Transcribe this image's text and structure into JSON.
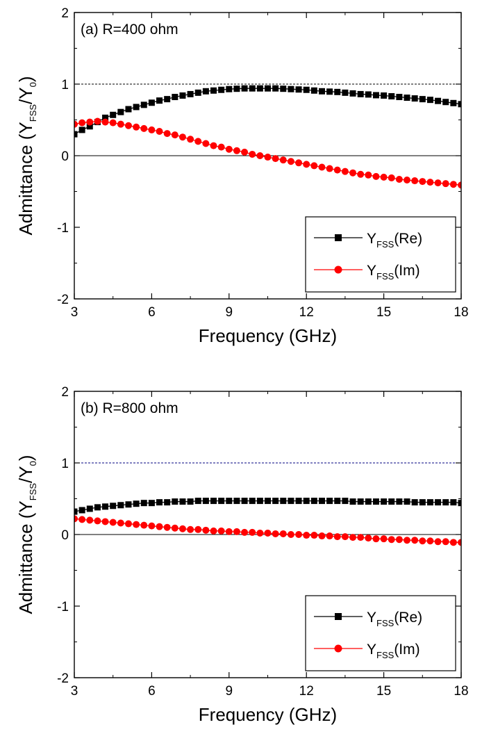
{
  "chart_data": [
    {
      "type": "line",
      "panel_label": "(a) R=400 ohm",
      "xlabel": "Frequency (GHz)",
      "ylabel": {
        "main": "Admittance (Y",
        "sub1": "FSS",
        "mid": "/Y",
        "sub2": "0",
        "end": ")"
      },
      "xlim": [
        3,
        18
      ],
      "ylim": [
        -2,
        2
      ],
      "xticks": [
        3,
        6,
        9,
        12,
        15,
        18
      ],
      "yticks": [
        -2,
        -1,
        0,
        1,
        2
      ],
      "reference_lines": [
        {
          "y": 1,
          "style": "dotted"
        },
        {
          "y": 0,
          "style": "solid"
        }
      ],
      "legend_position": "bottom-right",
      "colors": {
        "re": "#000000",
        "im": "#ff0000",
        "ref": "#000000"
      },
      "series": [
        {
          "key": "re",
          "marker": "square",
          "legend": {
            "pre": "Y",
            "sub": "FSS",
            "post": "(Re)"
          },
          "x": [
            3.0,
            3.3,
            3.6,
            3.9,
            4.2,
            4.5,
            4.8,
            5.1,
            5.4,
            5.7,
            6.0,
            6.3,
            6.6,
            6.9,
            7.2,
            7.5,
            7.8,
            8.1,
            8.4,
            8.7,
            9.0,
            9.3,
            9.6,
            9.9,
            10.2,
            10.5,
            10.8,
            11.1,
            11.4,
            11.7,
            12.0,
            12.3,
            12.6,
            12.9,
            13.2,
            13.5,
            13.8,
            14.1,
            14.4,
            14.7,
            15.0,
            15.3,
            15.6,
            15.9,
            16.2,
            16.5,
            16.8,
            17.1,
            17.4,
            17.7,
            18.0
          ],
          "y": [
            0.3,
            0.36,
            0.41,
            0.47,
            0.53,
            0.57,
            0.61,
            0.65,
            0.68,
            0.71,
            0.74,
            0.77,
            0.79,
            0.82,
            0.84,
            0.86,
            0.88,
            0.9,
            0.91,
            0.92,
            0.93,
            0.935,
            0.94,
            0.94,
            0.94,
            0.94,
            0.94,
            0.935,
            0.93,
            0.925,
            0.92,
            0.91,
            0.9,
            0.895,
            0.89,
            0.88,
            0.87,
            0.86,
            0.855,
            0.845,
            0.84,
            0.83,
            0.82,
            0.81,
            0.8,
            0.79,
            0.78,
            0.765,
            0.75,
            0.735,
            0.72
          ]
        },
        {
          "key": "im",
          "marker": "circle",
          "legend": {
            "pre": "Y",
            "sub": "FSS",
            "post": "(Im)"
          },
          "x": [
            3.0,
            3.3,
            3.6,
            3.9,
            4.2,
            4.5,
            4.8,
            5.1,
            5.4,
            5.7,
            6.0,
            6.3,
            6.6,
            6.9,
            7.2,
            7.5,
            7.8,
            8.1,
            8.4,
            8.7,
            9.0,
            9.3,
            9.6,
            9.9,
            10.2,
            10.5,
            10.8,
            11.1,
            11.4,
            11.7,
            12.0,
            12.3,
            12.6,
            12.9,
            13.2,
            13.5,
            13.8,
            14.1,
            14.4,
            14.7,
            15.0,
            15.3,
            15.6,
            15.9,
            16.2,
            16.5,
            16.8,
            17.1,
            17.4,
            17.7,
            18.0
          ],
          "y": [
            0.44,
            0.46,
            0.47,
            0.48,
            0.47,
            0.46,
            0.44,
            0.42,
            0.4,
            0.38,
            0.36,
            0.34,
            0.31,
            0.29,
            0.26,
            0.23,
            0.2,
            0.17,
            0.14,
            0.12,
            0.09,
            0.07,
            0.05,
            0.02,
            0.0,
            -0.02,
            -0.04,
            -0.06,
            -0.08,
            -0.1,
            -0.12,
            -0.14,
            -0.16,
            -0.18,
            -0.2,
            -0.22,
            -0.24,
            -0.26,
            -0.27,
            -0.29,
            -0.3,
            -0.31,
            -0.33,
            -0.34,
            -0.35,
            -0.36,
            -0.37,
            -0.38,
            -0.39,
            -0.4,
            -0.41
          ]
        }
      ]
    },
    {
      "type": "line",
      "panel_label": "(b) R=800 ohm",
      "xlabel": "Frequency (GHz)",
      "ylabel": {
        "main": "Admittance (Y",
        "sub1": "FSS",
        "mid": "/Y",
        "sub2": "0",
        "end": ")"
      },
      "xlim": [
        3,
        18
      ],
      "ylim": [
        -2,
        2
      ],
      "xticks": [
        3,
        6,
        9,
        12,
        15,
        18
      ],
      "yticks": [
        -2,
        -1,
        0,
        1,
        2
      ],
      "reference_lines": [
        {
          "y": 1,
          "style": "dotted"
        },
        {
          "y": 0,
          "style": "solid"
        }
      ],
      "legend_position": "bottom-right",
      "colors": {
        "re": "#000000",
        "im": "#ff0000",
        "ref": "#000080"
      },
      "series": [
        {
          "key": "re",
          "marker": "square",
          "legend": {
            "pre": "Y",
            "sub": "FSS",
            "post": "(Re)"
          },
          "x": [
            3.0,
            3.3,
            3.6,
            3.9,
            4.2,
            4.5,
            4.8,
            5.1,
            5.4,
            5.7,
            6.0,
            6.3,
            6.6,
            6.9,
            7.2,
            7.5,
            7.8,
            8.1,
            8.4,
            8.7,
            9.0,
            9.3,
            9.6,
            9.9,
            10.2,
            10.5,
            10.8,
            11.1,
            11.4,
            11.7,
            12.0,
            12.3,
            12.6,
            12.9,
            13.2,
            13.5,
            13.8,
            14.1,
            14.4,
            14.7,
            15.0,
            15.3,
            15.6,
            15.9,
            16.2,
            16.5,
            16.8,
            17.1,
            17.4,
            17.7,
            18.0
          ],
          "y": [
            0.32,
            0.34,
            0.36,
            0.38,
            0.39,
            0.4,
            0.41,
            0.42,
            0.43,
            0.44,
            0.44,
            0.45,
            0.45,
            0.46,
            0.46,
            0.46,
            0.47,
            0.47,
            0.47,
            0.47,
            0.47,
            0.47,
            0.47,
            0.47,
            0.47,
            0.47,
            0.47,
            0.47,
            0.47,
            0.47,
            0.47,
            0.47,
            0.47,
            0.47,
            0.47,
            0.47,
            0.46,
            0.46,
            0.46,
            0.46,
            0.46,
            0.46,
            0.46,
            0.46,
            0.45,
            0.45,
            0.45,
            0.45,
            0.45,
            0.45,
            0.44
          ]
        },
        {
          "key": "im",
          "marker": "circle",
          "legend": {
            "pre": "Y",
            "sub": "FSS",
            "post": "(Im)"
          },
          "x": [
            3.0,
            3.3,
            3.6,
            3.9,
            4.2,
            4.5,
            4.8,
            5.1,
            5.4,
            5.7,
            6.0,
            6.3,
            6.6,
            6.9,
            7.2,
            7.5,
            7.8,
            8.1,
            8.4,
            8.7,
            9.0,
            9.3,
            9.6,
            9.9,
            10.2,
            10.5,
            10.8,
            11.1,
            11.4,
            11.7,
            12.0,
            12.3,
            12.6,
            12.9,
            13.2,
            13.5,
            13.8,
            14.1,
            14.4,
            14.7,
            15.0,
            15.3,
            15.6,
            15.9,
            16.2,
            16.5,
            16.8,
            17.1,
            17.4,
            17.7,
            18.0
          ],
          "y": [
            0.22,
            0.21,
            0.2,
            0.19,
            0.18,
            0.17,
            0.16,
            0.15,
            0.14,
            0.13,
            0.12,
            0.11,
            0.1,
            0.09,
            0.08,
            0.07,
            0.07,
            0.06,
            0.05,
            0.05,
            0.04,
            0.04,
            0.03,
            0.03,
            0.02,
            0.02,
            0.01,
            0.01,
            0.0,
            0.0,
            -0.01,
            -0.01,
            -0.02,
            -0.02,
            -0.03,
            -0.03,
            -0.04,
            -0.04,
            -0.05,
            -0.06,
            -0.06,
            -0.07,
            -0.07,
            -0.08,
            -0.08,
            -0.09,
            -0.09,
            -0.1,
            -0.1,
            -0.11,
            -0.11
          ]
        }
      ]
    }
  ]
}
